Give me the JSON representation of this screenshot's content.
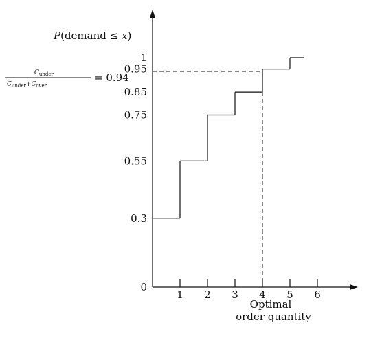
{
  "chart_data": {
    "type": "line",
    "step": true,
    "title": "",
    "ylabel": {
      "prefix": "P",
      "open": "(demand ≤ ",
      "var": "x",
      "close": ")"
    },
    "xlabel_lines": [
      "Optimal",
      "order quantity"
    ],
    "x_ticks": [
      1,
      2,
      3,
      4,
      5,
      6
    ],
    "y_ticks": [
      {
        "value": 0,
        "label": "0"
      },
      {
        "value": 0.3,
        "label": "0.3"
      },
      {
        "value": 0.55,
        "label": "0.55"
      },
      {
        "value": 0.75,
        "label": "0.75"
      },
      {
        "value": 0.85,
        "label": "0.85"
      },
      {
        "value": 0.95,
        "label": "0.95"
      },
      {
        "value": 1,
        "label": "1"
      }
    ],
    "xlim": [
      0,
      7
    ],
    "ylim": [
      0,
      1.2
    ],
    "series": [
      {
        "points": [
          {
            "x": 0,
            "y": 0.3
          },
          {
            "x": 1,
            "y": 0.55
          },
          {
            "x": 2,
            "y": 0.75
          },
          {
            "x": 3,
            "y": 0.85
          },
          {
            "x": 4,
            "y": 0.95
          },
          {
            "x": 5,
            "y": 1
          },
          {
            "x": 5.5,
            "y": 1
          }
        ]
      }
    ],
    "annotation": {
      "ratio_numerator": "C",
      "numerator_sub": "under",
      "ratio_denominator_a": "C",
      "denominator_sub_a": "under",
      "plus": "+",
      "ratio_denominator_b": "C",
      "denominator_sub_b": "over",
      "equals": "= 0.94",
      "critical_value": 0.94,
      "optimal_x": 4
    },
    "grid": false,
    "legend": "none"
  }
}
